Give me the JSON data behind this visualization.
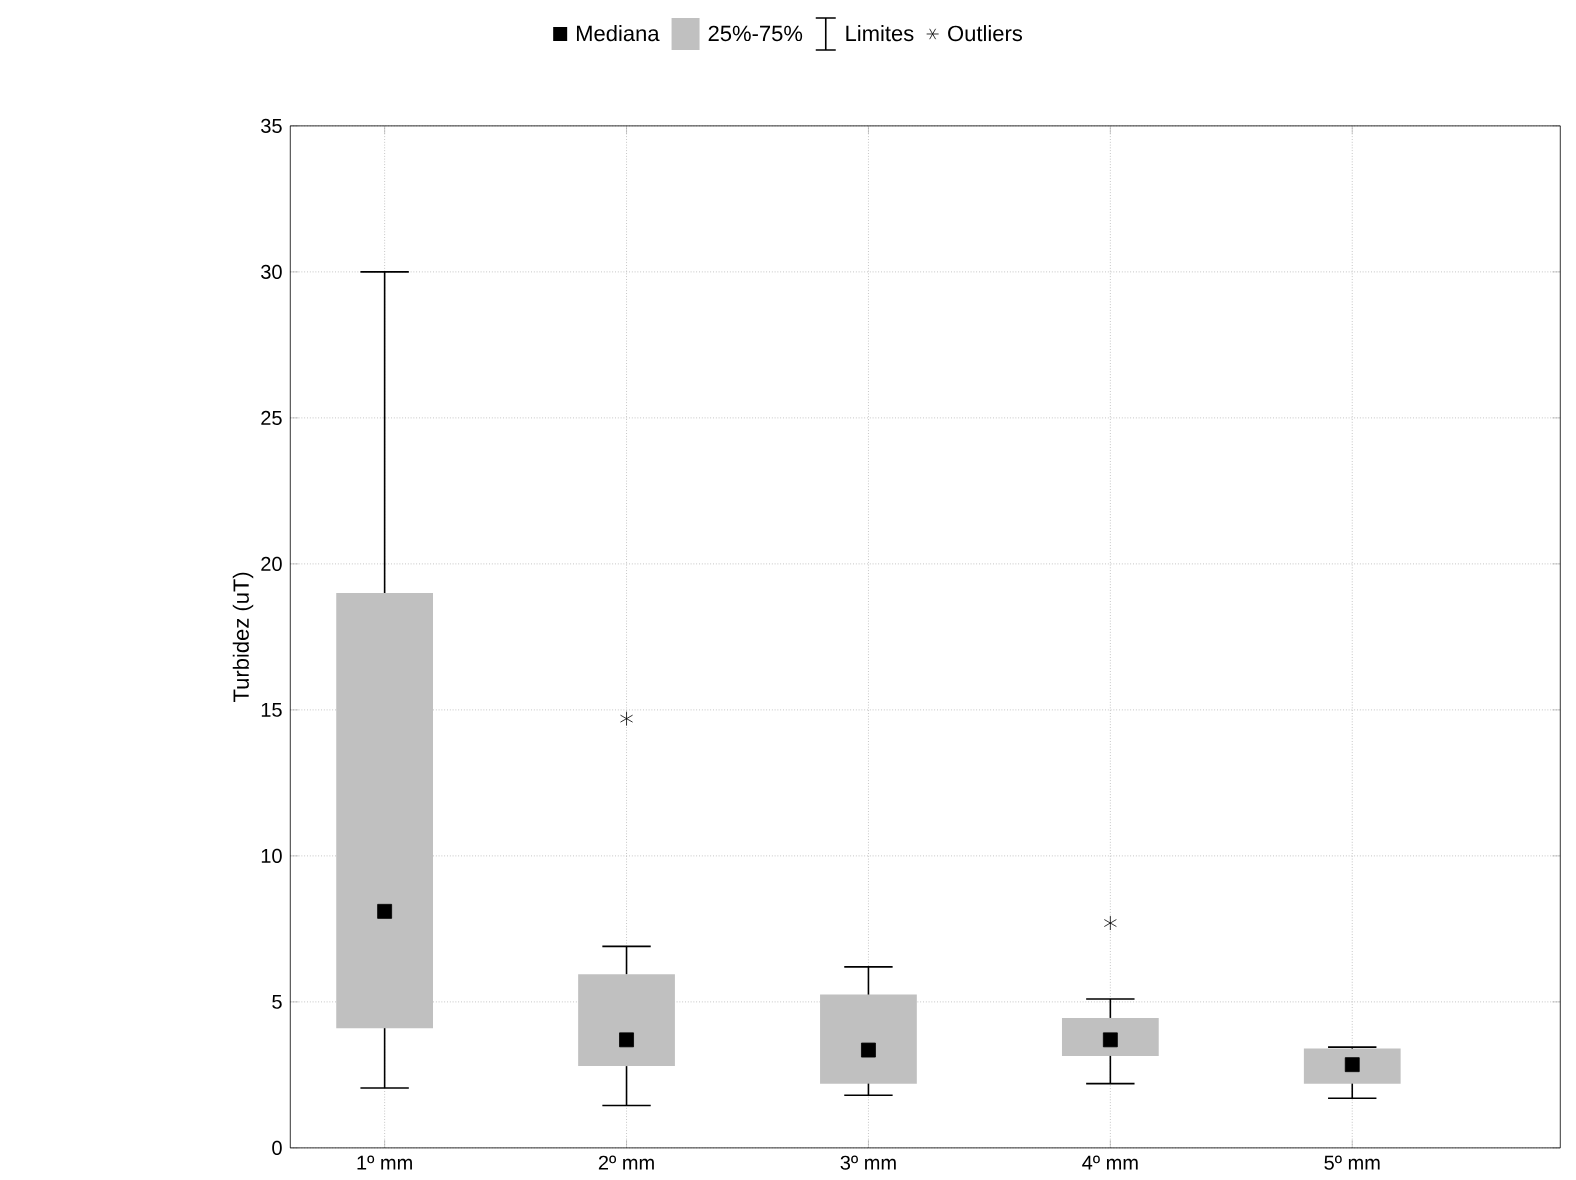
{
  "chart_data": {
    "type": "box",
    "ylabel": "Turbidez (uT)",
    "categories": [
      "1º mm",
      "2º mm",
      "3º mm",
      "4º mm",
      "5º mm"
    ],
    "color": "#c0c0c0",
    "boxes": [
      {
        "low": 2.05,
        "q1": 4.1,
        "median": 8.1,
        "q3": 19.0,
        "high": 30.0
      },
      {
        "low": 1.45,
        "q1": 2.8,
        "median": 3.7,
        "q3": 5.95,
        "high": 6.9,
        "outliers": [
          14.7
        ]
      },
      {
        "low": 1.8,
        "q1": 2.2,
        "median": 3.35,
        "q3": 5.25,
        "high": 6.2
      },
      {
        "low": 2.2,
        "q1": 3.15,
        "median": 3.7,
        "q3": 4.45,
        "high": 5.1,
        "outliers": [
          7.7
        ]
      },
      {
        "low": 1.7,
        "q1": 2.2,
        "median": 2.85,
        "q3": 3.4,
        "high": 3.45
      }
    ],
    "ylim": [
      0,
      35
    ],
    "yticks": [
      0,
      5,
      10,
      15,
      20,
      25,
      30,
      35
    ],
    "grid": true,
    "annotations": [
      "Mediana",
      "25%-75%",
      "Limites",
      "Outliers"
    ]
  }
}
